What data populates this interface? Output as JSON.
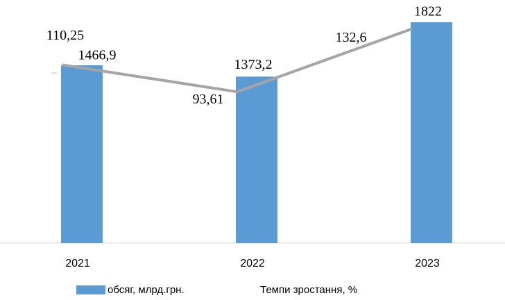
{
  "chart_data": {
    "type": "bar_line",
    "categories": [
      "2021",
      "2022",
      "2023"
    ],
    "series": [
      {
        "name": "обсяг, млрд.грн.",
        "type": "bar",
        "color": "#5b9bd5",
        "values": [
          1466.9,
          1373.2,
          1822
        ],
        "value_labels": [
          "1466,9",
          "1373,2",
          "1822"
        ]
      },
      {
        "name": "Темпи зростання, %",
        "type": "line",
        "axis": "y2",
        "color": "#a5a5a5",
        "values": [
          110.25,
          93.61,
          132.6
        ],
        "value_labels": [
          "110,25",
          "93,61",
          "132,6"
        ]
      }
    ],
    "ylim": [
      0,
      2000
    ],
    "y2lim": [
      0,
      150
    ],
    "legend": "bottom"
  }
}
